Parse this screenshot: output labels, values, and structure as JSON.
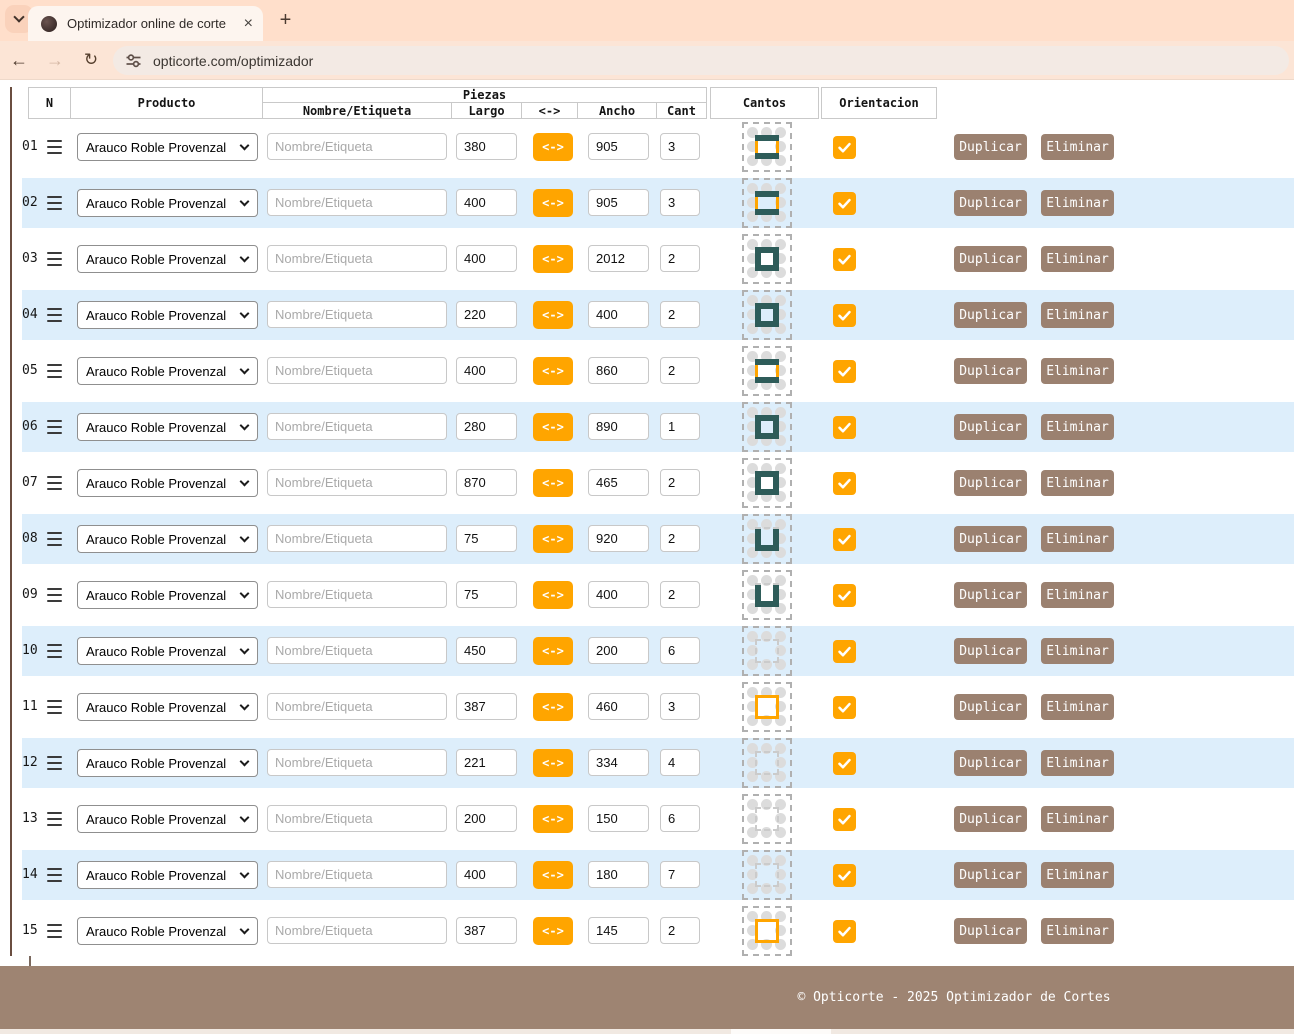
{
  "browser": {
    "tab_title": "Optimizador online de corte",
    "url": "opticorte.com/optimizador",
    "icons": {
      "close": "×",
      "new_tab": "+",
      "back": "←",
      "forward": "→",
      "reload": "↻"
    }
  },
  "table": {
    "headers": {
      "n": "N",
      "producto": "Producto",
      "piezas": "Piezas",
      "nombre": "Nombre/Etiqueta",
      "largo": "Largo",
      "swap": "<->",
      "ancho": "Ancho",
      "cant": "Cant",
      "cantos": "Cantos",
      "orientacion": "Orientacion"
    },
    "product_selected": "Arauco Roble Provenzal",
    "name_placeholder": "Nombre/Etiqueta",
    "swap_label": "<->",
    "actions": {
      "duplicate": "Duplicar",
      "delete": "Eliminar"
    },
    "colors": {
      "accent_orange": "#ffa500",
      "edge_teal": "#2e5c59",
      "button_taupe": "#9b8170",
      "stripe_blue": "#ddeefb"
    },
    "rows": [
      {
        "n": "01",
        "largo": "380",
        "ancho": "905",
        "cant": "3",
        "orientacion": true,
        "cantos": {
          "top": "teal",
          "right": "orange",
          "bottom": "teal",
          "left": "orange"
        }
      },
      {
        "n": "02",
        "largo": "400",
        "ancho": "905",
        "cant": "3",
        "orientacion": true,
        "cantos": {
          "top": "teal",
          "right": "orange",
          "bottom": "teal",
          "left": "orange"
        }
      },
      {
        "n": "03",
        "largo": "400",
        "ancho": "2012",
        "cant": "2",
        "orientacion": true,
        "cantos": {
          "top": "teal",
          "right": "teal",
          "bottom": "teal",
          "left": "teal"
        }
      },
      {
        "n": "04",
        "largo": "220",
        "ancho": "400",
        "cant": "2",
        "orientacion": true,
        "cantos": {
          "top": "teal",
          "right": "teal",
          "bottom": "teal",
          "left": "teal"
        }
      },
      {
        "n": "05",
        "largo": "400",
        "ancho": "860",
        "cant": "2",
        "orientacion": true,
        "cantos": {
          "top": "teal",
          "right": "orange",
          "bottom": "teal",
          "left": "orange"
        }
      },
      {
        "n": "06",
        "largo": "280",
        "ancho": "890",
        "cant": "1",
        "orientacion": true,
        "cantos": {
          "top": "teal",
          "right": "teal",
          "bottom": "teal",
          "left": "teal"
        }
      },
      {
        "n": "07",
        "largo": "870",
        "ancho": "465",
        "cant": "2",
        "orientacion": true,
        "cantos": {
          "top": "teal",
          "right": "teal",
          "bottom": "teal",
          "left": "teal"
        }
      },
      {
        "n": "08",
        "largo": "75",
        "ancho": "920",
        "cant": "2",
        "orientacion": true,
        "cantos": {
          "top": "none",
          "right": "teal",
          "bottom": "teal",
          "left": "teal"
        }
      },
      {
        "n": "09",
        "largo": "75",
        "ancho": "400",
        "cant": "2",
        "orientacion": true,
        "cantos": {
          "top": "none",
          "right": "teal",
          "bottom": "teal",
          "left": "teal"
        }
      },
      {
        "n": "10",
        "largo": "450",
        "ancho": "200",
        "cant": "6",
        "orientacion": true,
        "cantos": {
          "top": "none",
          "right": "none",
          "bottom": "none",
          "left": "none"
        }
      },
      {
        "n": "11",
        "largo": "387",
        "ancho": "460",
        "cant": "3",
        "orientacion": true,
        "cantos": {
          "top": "orange",
          "right": "orange",
          "bottom": "orange",
          "left": "orange"
        }
      },
      {
        "n": "12",
        "largo": "221",
        "ancho": "334",
        "cant": "4",
        "orientacion": true,
        "cantos": {
          "top": "none",
          "right": "none",
          "bottom": "none",
          "left": "none"
        }
      },
      {
        "n": "13",
        "largo": "200",
        "ancho": "150",
        "cant": "6",
        "orientacion": true,
        "cantos": {
          "top": "none",
          "right": "none",
          "bottom": "none",
          "left": "none"
        }
      },
      {
        "n": "14",
        "largo": "400",
        "ancho": "180",
        "cant": "7",
        "orientacion": true,
        "cantos": {
          "top": "none",
          "right": "none",
          "bottom": "none",
          "left": "none"
        }
      },
      {
        "n": "15",
        "largo": "387",
        "ancho": "145",
        "cant": "2",
        "orientacion": true,
        "cantos": {
          "top": "orange",
          "right": "orange",
          "bottom": "orange",
          "left": "orange"
        }
      }
    ]
  },
  "footer": {
    "text": "© Opticorte - 2025 Optimizador de Cortes"
  }
}
